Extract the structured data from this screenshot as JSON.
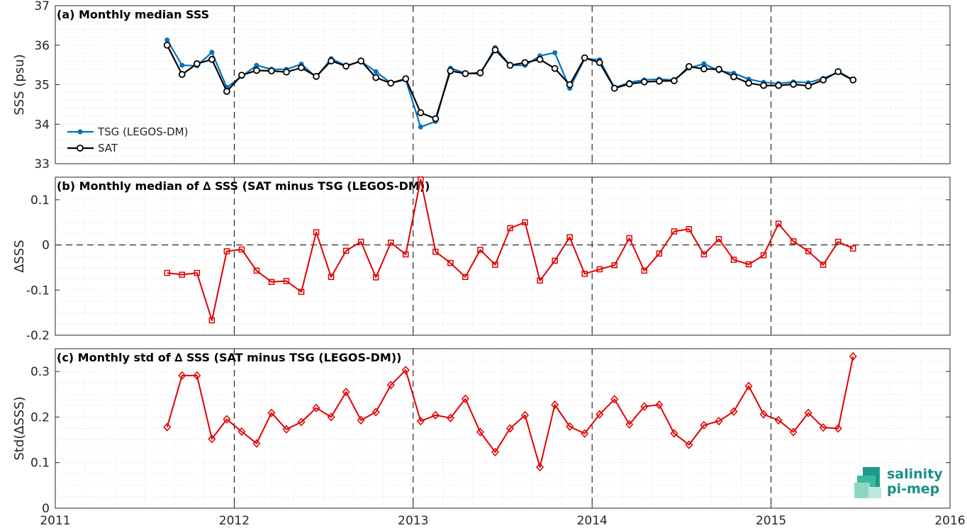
{
  "chart_data": [
    {
      "type": "line",
      "title": "(a) Monthly median SSS",
      "ylabel": "SSS (psu)",
      "xlim": [
        2011,
        2016
      ],
      "ylim": [
        33,
        37
      ],
      "yticks": [
        33,
        34,
        35,
        36,
        37
      ],
      "grid": "minor dotted",
      "legend_position": "bottom-left",
      "series": [
        {
          "name": "TSG (LEGOS-DM)",
          "color": "#0072BD",
          "marker": "dot",
          "values": [
            36.13,
            35.49,
            35.48,
            35.82,
            34.93,
            35.21,
            35.49,
            35.39,
            35.39,
            35.52,
            35.19,
            35.66,
            35.48,
            35.59,
            35.33,
            35.04,
            35.13,
            33.93,
            34.07,
            35.42,
            35.29,
            35.27,
            35.94,
            35.49,
            35.49,
            35.73,
            35.81,
            34.91,
            35.66,
            35.63,
            34.92,
            35.06,
            35.12,
            35.14,
            35.12,
            35.42,
            35.53,
            35.35,
            35.29,
            35.14,
            35.06,
            35.03,
            35.07,
            35.05,
            35.16,
            35.31,
            35.11
          ]
        },
        {
          "name": "SAT",
          "color": "#000000",
          "marker": "circle",
          "values": [
            36.0,
            35.26,
            35.53,
            35.64,
            34.83,
            35.24,
            35.36,
            35.35,
            35.32,
            35.43,
            35.21,
            35.6,
            35.47,
            35.6,
            35.18,
            35.04,
            35.15,
            34.29,
            34.14,
            35.35,
            35.28,
            35.3,
            35.88,
            35.49,
            35.56,
            35.64,
            35.41,
            35.0,
            35.68,
            35.56,
            34.91,
            35.02,
            35.07,
            35.09,
            35.1,
            35.46,
            35.4,
            35.39,
            35.2,
            35.04,
            34.98,
            34.98,
            35.01,
            34.97,
            35.12,
            35.33,
            35.12
          ]
        }
      ]
    },
    {
      "type": "line",
      "title": "(b) Monthly median of ∆ SSS (SAT minus TSG (LEGOS-DM))",
      "ylabel": "∆SSS",
      "xlim": [
        2011,
        2016
      ],
      "ylim": [
        -0.2,
        0.15
      ],
      "yticks": [
        -0.2,
        -0.1,
        0,
        0.1
      ],
      "reference_line": 0,
      "grid": "minor dotted",
      "series": [
        {
          "color": "#E00000",
          "marker": "square",
          "values": [
            -0.062,
            -0.066,
            -0.062,
            -0.167,
            -0.014,
            -0.01,
            -0.057,
            -0.082,
            -0.08,
            -0.104,
            0.028,
            -0.071,
            -0.013,
            0.007,
            -0.072,
            0.005,
            -0.021,
            0.145,
            -0.015,
            -0.04,
            -0.071,
            -0.011,
            -0.044,
            0.037,
            0.05,
            -0.079,
            -0.035,
            0.017,
            -0.064,
            -0.054,
            -0.045,
            0.015,
            -0.057,
            -0.019,
            0.03,
            0.035,
            -0.021,
            0.013,
            -0.033,
            -0.043,
            -0.023,
            0.047,
            0.008,
            -0.014,
            -0.044,
            0.007,
            -0.008
          ]
        }
      ]
    },
    {
      "type": "line",
      "title": "(c) Monthly std of ∆ SSS (SAT minus TSG (LEGOS-DM))",
      "ylabel": "Std(∆SSS)",
      "xlabel": "",
      "xlim": [
        2011,
        2016
      ],
      "xticks": [
        2011,
        2012,
        2013,
        2014,
        2015,
        2016
      ],
      "ylim": [
        0,
        0.35
      ],
      "yticks": [
        0,
        0.1,
        0.2,
        0.3
      ],
      "grid": "minor dotted",
      "series": [
        {
          "color": "#E00000",
          "marker": "diamond",
          "values": [
            0.178,
            0.291,
            0.291,
            0.152,
            0.195,
            0.168,
            0.142,
            0.209,
            0.173,
            0.189,
            0.22,
            0.2,
            0.255,
            0.193,
            0.211,
            0.27,
            0.303,
            0.191,
            0.204,
            0.198,
            0.24,
            0.167,
            0.123,
            0.175,
            0.204,
            0.09,
            0.227,
            0.179,
            0.164,
            0.206,
            0.239,
            0.184,
            0.223,
            0.227,
            0.164,
            0.139,
            0.182,
            0.191,
            0.212,
            0.268,
            0.206,
            0.193,
            0.167,
            0.209,
            0.177,
            0.175,
            0.333
          ]
        }
      ]
    }
  ],
  "time_axis": {
    "start_year": 2011,
    "start_month": 8,
    "count": 47,
    "step_months": 1
  },
  "logo": {
    "line1": "salinity",
    "line2": "pi-mep",
    "color": "#1a8f86"
  }
}
